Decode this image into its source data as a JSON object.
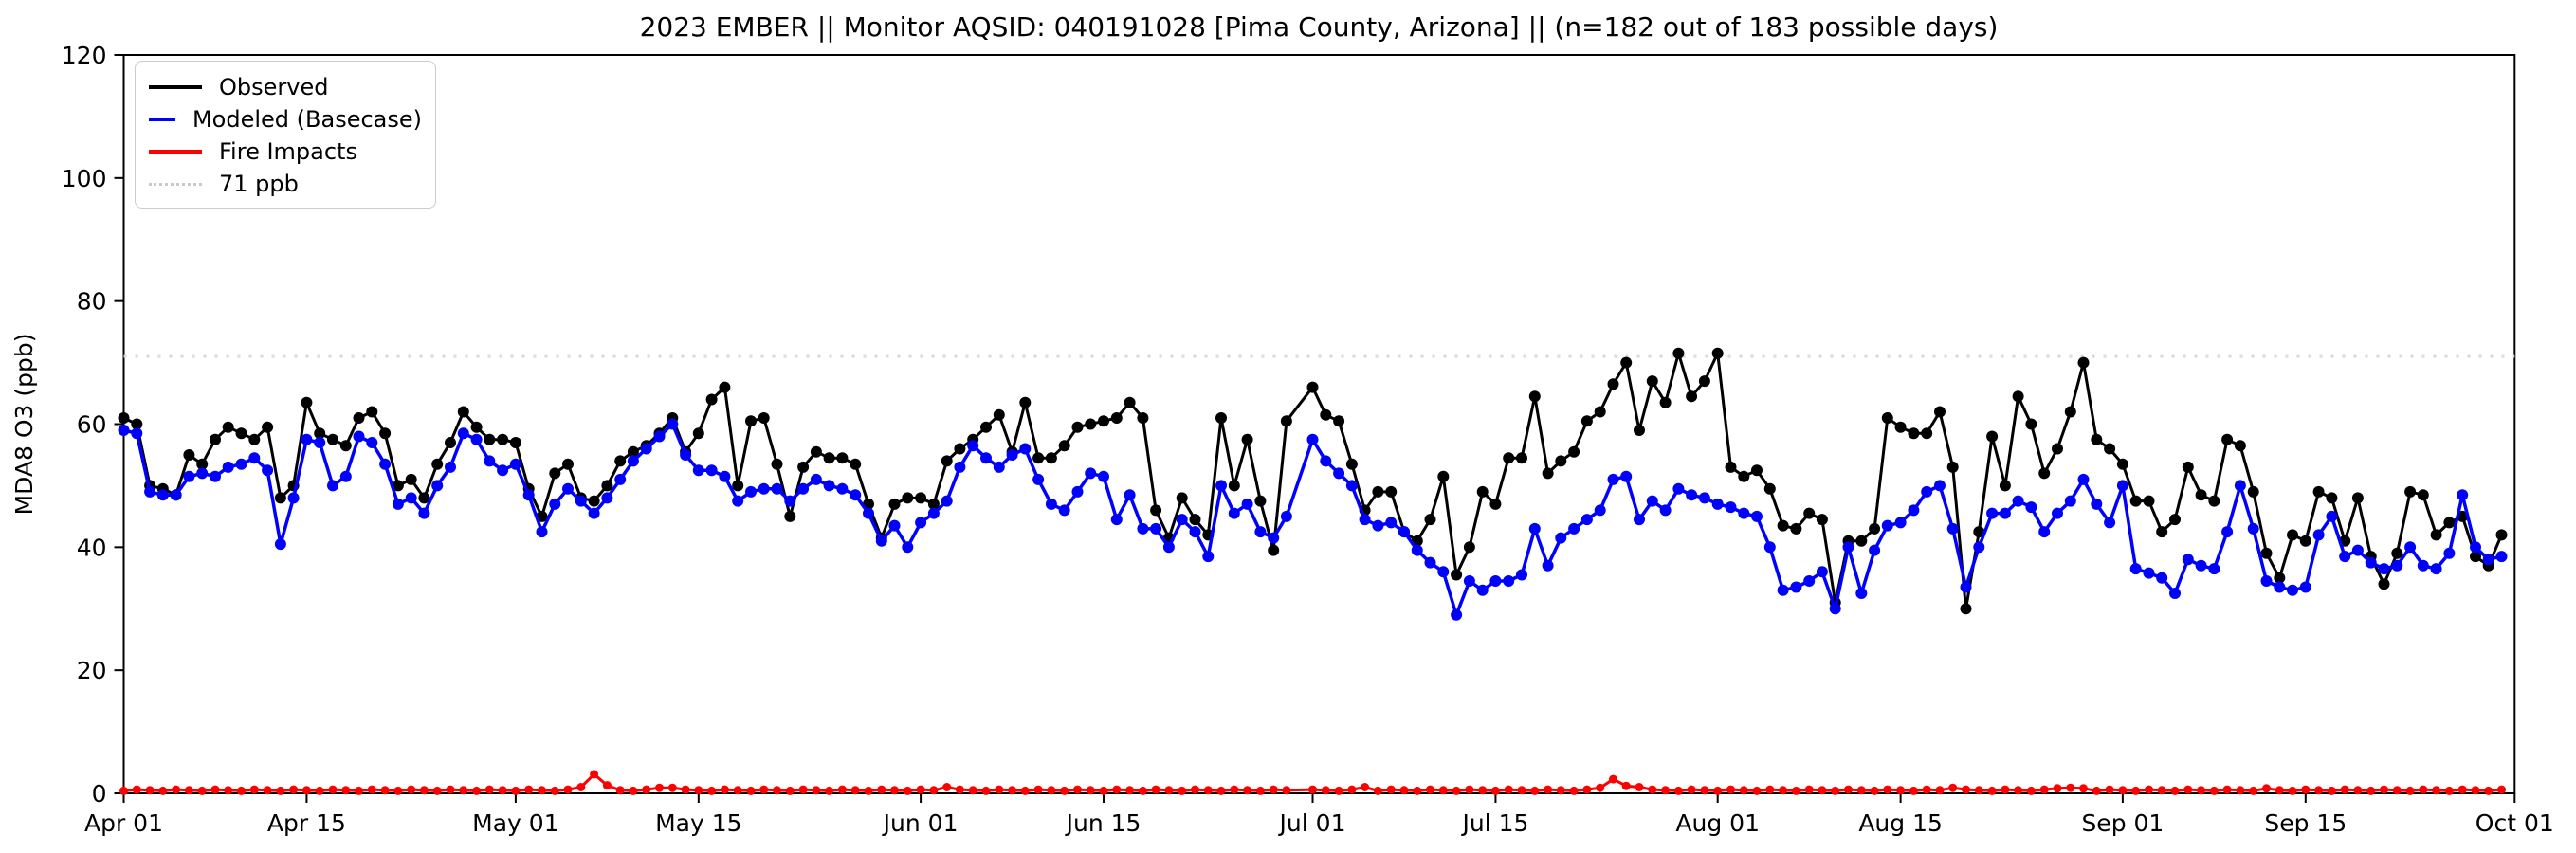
{
  "title": "2023 EMBER || Monitor AQSID: 040191028 [Pima County, Arizona] || (n=182 out of 183 possible days)",
  "legend": {
    "items": [
      {
        "label": "Observed",
        "style": "solid",
        "color": "#000000"
      },
      {
        "label": "Modeled (Basecase)",
        "style": "solid",
        "color": "#0000ff"
      },
      {
        "label": "Fire Impacts",
        "style": "solid",
        "color": "#ff0000"
      },
      {
        "label": "71 ppb",
        "style": "dotted",
        "color": "#d9d9d9"
      }
    ]
  },
  "chart_data": {
    "type": "line",
    "title": "2023 EMBER || Monitor AQSID: 040191028 [Pima County, Arizona] || (n=182 out of 183 possible days)",
    "xlabel": "",
    "ylabel": "MDA8 O3 (ppb)",
    "ylim": [
      0,
      120
    ],
    "yticks": [
      0,
      20,
      40,
      60,
      80,
      100,
      120
    ],
    "x_start_date": "Apr 01",
    "x_end_date": "Oct 01",
    "days_total": 183,
    "days_with_data": 182,
    "missing_day_index": 90,
    "grid": false,
    "legend_position": "upper left",
    "reference_line": {
      "value": 71,
      "label": "71 ppb",
      "color": "#d9d9d9",
      "style": "dotted"
    },
    "xticks": [
      {
        "label": "Apr 01",
        "day": 0
      },
      {
        "label": "Apr 15",
        "day": 14
      },
      {
        "label": "May 01",
        "day": 30
      },
      {
        "label": "May 15",
        "day": 44
      },
      {
        "label": "Jun 01",
        "day": 61
      },
      {
        "label": "Jun 15",
        "day": 75
      },
      {
        "label": "Jul 01",
        "day": 91
      },
      {
        "label": "Jul 15",
        "day": 105
      },
      {
        "label": "Aug 01",
        "day": 122
      },
      {
        "label": "Aug 15",
        "day": 136
      },
      {
        "label": "Sep 01",
        "day": 153
      },
      {
        "label": "Sep 15",
        "day": 167
      },
      {
        "label": "Oct 01",
        "day": 183
      }
    ],
    "series": [
      {
        "name": "Observed",
        "color": "#000000",
        "values": [
          61,
          60,
          50,
          49.5,
          48.5,
          55,
          53.5,
          57.5,
          59.5,
          58.5,
          57.5,
          59.5,
          48,
          50,
          63.5,
          58.5,
          57.5,
          56.5,
          61,
          62,
          58.5,
          50,
          51,
          48,
          53.5,
          57,
          62,
          59.5,
          57.5,
          57.5,
          57,
          49.5,
          45,
          52,
          53.5,
          48,
          47.5,
          50,
          54,
          55.5,
          56.5,
          58.5,
          61,
          55.5,
          58.5,
          64,
          66,
          50,
          60.5,
          61,
          53.5,
          45,
          53,
          55.5,
          54.5,
          54.5,
          53.5,
          47,
          41.5,
          47,
          48,
          48,
          47,
          54,
          56,
          57.5,
          59.5,
          61.5,
          55.5,
          63.5,
          54.5,
          54.5,
          56.5,
          59.5,
          60,
          60.5,
          61,
          63.5,
          61,
          46,
          41.5,
          48,
          44.5,
          42,
          61,
          50,
          57.5,
          47.5,
          39.5,
          60.5,
          null,
          66,
          61.5,
          60.5,
          53.5,
          46,
          49,
          49,
          42.5,
          41,
          44.5,
          51.5,
          35.5,
          40,
          49,
          47,
          54.5,
          54.5,
          64.5,
          52,
          54,
          55.5,
          60.5,
          62,
          66.5,
          70,
          59,
          67,
          63.5,
          71.5,
          64.5,
          67,
          71.5,
          53,
          51.5,
          52.5,
          49.5,
          43.5,
          43,
          45.5,
          44.5,
          31,
          41,
          41,
          43,
          61,
          59.5,
          58.5,
          58.5,
          62,
          53,
          30,
          42.5,
          58,
          50,
          64.5,
          60,
          52,
          56,
          62,
          70,
          57.5,
          56,
          53.5,
          47.5,
          47.5,
          42.5,
          44.5,
          53,
          48.5,
          47.5,
          57.5,
          56.5,
          49,
          39,
          35,
          42,
          41,
          49,
          48,
          41,
          48,
          38.5,
          34,
          39,
          49,
          48.5,
          42,
          44,
          45,
          38.5,
          37,
          42
        ]
      },
      {
        "name": "Modeled (Basecase)",
        "color": "#0000ff",
        "values": [
          59,
          58.5,
          49,
          48.5,
          48.5,
          51.5,
          52,
          51.5,
          53,
          53.5,
          54.5,
          52.5,
          40.5,
          48,
          57.5,
          57,
          50,
          51.5,
          58,
          57,
          53.5,
          47,
          48,
          45.5,
          50,
          53,
          58.5,
          57.5,
          54,
          52.5,
          53.5,
          48.5,
          42.5,
          47,
          49.5,
          47.5,
          45.5,
          48,
          51,
          54,
          56,
          58,
          60,
          55,
          52.5,
          52.5,
          51.5,
          47.5,
          49,
          49.5,
          49.5,
          47.5,
          49.5,
          51,
          50,
          49.5,
          48.5,
          45.5,
          41,
          43.5,
          40,
          44,
          45.5,
          47.5,
          53,
          56.5,
          54.5,
          53,
          55,
          56,
          51,
          47,
          46,
          49,
          52,
          51.5,
          44.5,
          48.5,
          43,
          43,
          40,
          44.5,
          42.5,
          38.5,
          50,
          45.5,
          47,
          42.5,
          41.5,
          45,
          null,
          57.5,
          54,
          52,
          50,
          44.5,
          43.5,
          44,
          42.5,
          39.5,
          37.5,
          36,
          29,
          34.5,
          33,
          34.5,
          34.5,
          35.5,
          43,
          37,
          41.5,
          43,
          44.5,
          46,
          51,
          51.5,
          44.5,
          47.5,
          46,
          49.5,
          48.5,
          48,
          47,
          46.5,
          45.5,
          45,
          40,
          33,
          33.5,
          34.5,
          36,
          30,
          40,
          32.5,
          39.5,
          43.5,
          44,
          46,
          49,
          50,
          43,
          33.5,
          40,
          45.5,
          45.5,
          47.5,
          46.5,
          42.5,
          45.5,
          47.5,
          51,
          47,
          44,
          50,
          36.5,
          35.8,
          35,
          32.5,
          38,
          37,
          36.5,
          42.5,
          50,
          43,
          34.5,
          33.5,
          33,
          33.5,
          42,
          45,
          38.5,
          39.5,
          37.5,
          36.5,
          37,
          40,
          37,
          36.5,
          39,
          48.5,
          40,
          38,
          38.5
        ]
      },
      {
        "name": "Fire Impacts",
        "color": "#ff0000",
        "values": [
          0.4,
          0.6,
          0.5,
          0.4,
          0.6,
          0.5,
          0.4,
          0.6,
          0.5,
          0.4,
          0.6,
          0.5,
          0.4,
          0.6,
          0.5,
          0.4,
          0.6,
          0.5,
          0.4,
          0.6,
          0.5,
          0.4,
          0.6,
          0.5,
          0.4,
          0.6,
          0.5,
          0.4,
          0.6,
          0.5,
          0.4,
          0.6,
          0.5,
          0.4,
          0.6,
          1.0,
          3.1,
          1.3,
          0.5,
          0.4,
          0.6,
          0.9,
          0.9,
          0.6,
          0.5,
          0.4,
          0.6,
          0.5,
          0.4,
          0.6,
          0.5,
          0.4,
          0.6,
          0.5,
          0.4,
          0.6,
          0.5,
          0.4,
          0.6,
          0.5,
          0.4,
          0.6,
          0.5,
          1.0,
          0.6,
          0.5,
          0.4,
          0.6,
          0.5,
          0.4,
          0.6,
          0.5,
          0.4,
          0.6,
          0.5,
          0.4,
          0.6,
          0.5,
          0.4,
          0.6,
          0.5,
          0.4,
          0.6,
          0.5,
          0.4,
          0.6,
          0.5,
          0.4,
          0.6,
          0.5,
          null,
          0.6,
          0.5,
          0.4,
          0.6,
          1.0,
          0.4,
          0.6,
          0.5,
          0.4,
          0.6,
          0.5,
          0.4,
          0.6,
          0.5,
          0.4,
          0.6,
          0.5,
          0.4,
          0.6,
          0.5,
          0.4,
          0.6,
          0.9,
          2.3,
          1.2,
          1.0,
          0.6,
          0.5,
          0.4,
          0.6,
          0.5,
          0.4,
          0.6,
          0.5,
          0.4,
          0.6,
          0.5,
          0.4,
          0.6,
          0.5,
          0.4,
          0.6,
          0.5,
          0.4,
          0.6,
          0.5,
          0.4,
          0.6,
          0.5,
          0.9,
          0.6,
          0.5,
          0.4,
          0.6,
          0.5,
          0.4,
          0.6,
          0.8,
          0.9,
          0.8,
          0.4,
          0.6,
          0.5,
          0.4,
          0.6,
          0.5,
          0.4,
          0.6,
          0.5,
          0.4,
          0.6,
          0.5,
          0.4,
          0.8,
          0.5,
          0.4,
          0.6,
          0.5,
          0.4,
          0.6,
          0.5,
          0.4,
          0.6,
          0.5,
          0.4,
          0.6,
          0.5,
          0.4,
          0.6,
          0.5,
          0.4,
          0.6
        ]
      }
    ]
  },
  "axes": {
    "y_label": "MDA8 O3 (ppb)",
    "y_tick_labels": [
      "0",
      "20",
      "40",
      "60",
      "80",
      "100",
      "120"
    ],
    "x_tick_labels": [
      "Apr 01",
      "Apr 15",
      "May 01",
      "May 15",
      "Jun 01",
      "Jun 15",
      "Jul 01",
      "Jul 15",
      "Aug 01",
      "Aug 15",
      "Sep 01",
      "Sep 15",
      "Oct 01"
    ]
  }
}
